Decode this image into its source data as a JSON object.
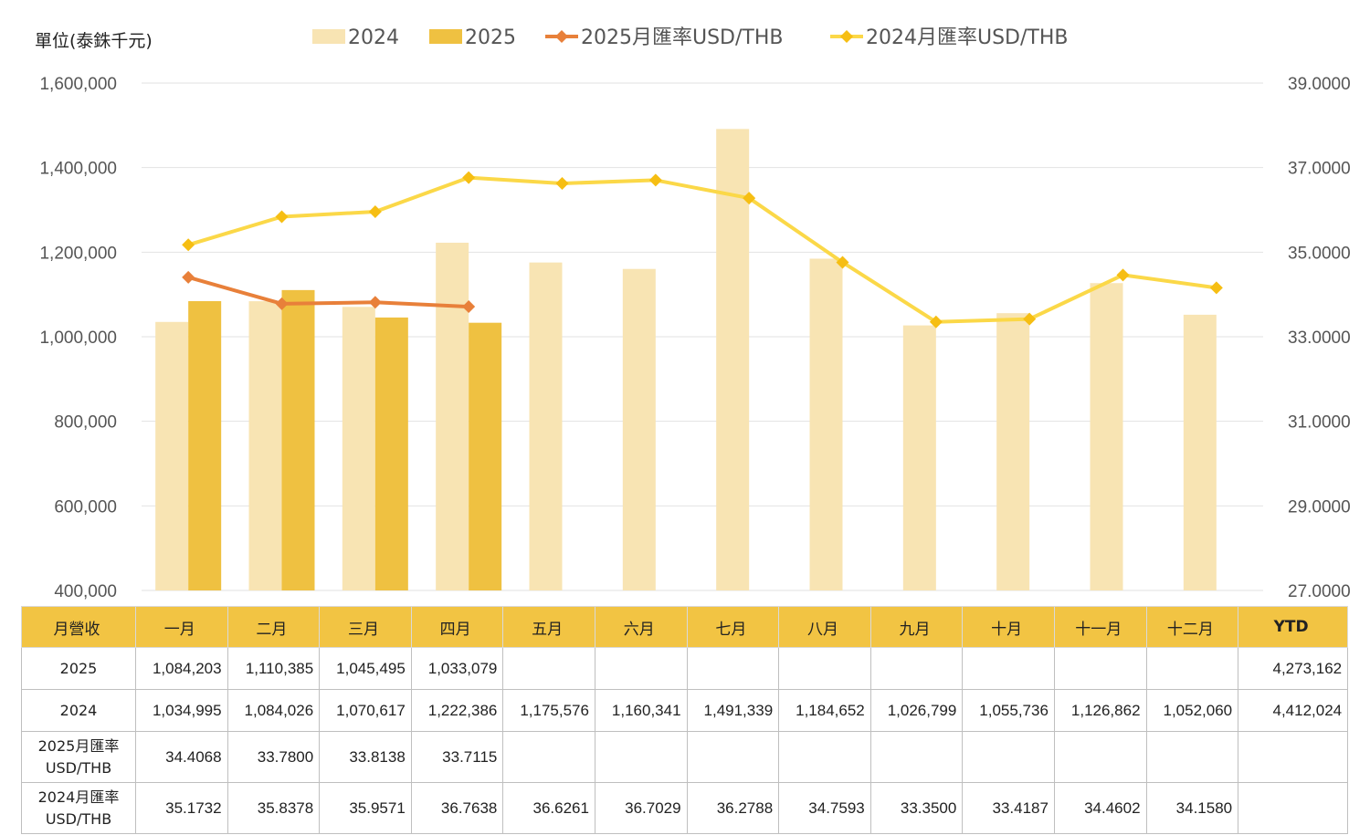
{
  "unit_label": "單位(泰銖千元)",
  "legend": {
    "s2024": "2024",
    "s2025": "2025",
    "r2025": "2025月匯率USD/THB",
    "r2024": "2024月匯率USD/THB"
  },
  "colors": {
    "bar2024": "#f8e4b3",
    "bar2025": "#efc141",
    "line2025": "#e8803a",
    "line2024": "#fbd848",
    "marker2024": "#f6be13",
    "header_bg": "#f2c443"
  },
  "chart_data": {
    "type": "bar",
    "categories": [
      "一月",
      "二月",
      "三月",
      "四月",
      "五月",
      "六月",
      "七月",
      "八月",
      "九月",
      "十月",
      "十一月",
      "十二月"
    ],
    "series": [
      {
        "name": "2024",
        "kind": "bar",
        "axis": "left",
        "values": [
          1034995,
          1084026,
          1070617,
          1222386,
          1175576,
          1160341,
          1491339,
          1184652,
          1026799,
          1055736,
          1126862,
          1052060
        ]
      },
      {
        "name": "2025",
        "kind": "bar",
        "axis": "left",
        "values": [
          1084203,
          1110385,
          1045495,
          1033079,
          null,
          null,
          null,
          null,
          null,
          null,
          null,
          null
        ]
      },
      {
        "name": "2025月匯率USD/THB",
        "kind": "line",
        "axis": "right",
        "values": [
          34.4068,
          33.78,
          33.8138,
          33.7115,
          null,
          null,
          null,
          null,
          null,
          null,
          null,
          null
        ]
      },
      {
        "name": "2024月匯率USD/THB",
        "kind": "line",
        "axis": "right",
        "values": [
          35.1732,
          35.8378,
          35.9571,
          36.7638,
          36.6261,
          36.7029,
          36.2788,
          34.7593,
          33.35,
          33.4187,
          34.4602,
          34.158
        ]
      }
    ],
    "y_left": {
      "min": 400000,
      "max": 1600000,
      "ticks": [
        "400,000",
        "600,000",
        "800,000",
        "1,000,000",
        "1,200,000",
        "1,400,000",
        "1,600,000"
      ]
    },
    "y_right": {
      "min": 27,
      "max": 39,
      "ticks": [
        "27.0000",
        "29.0000",
        "31.0000",
        "33.0000",
        "35.0000",
        "37.0000",
        "39.0000"
      ]
    },
    "grid": true,
    "legend_position": "top"
  },
  "table": {
    "header": [
      "月營收",
      "一月",
      "二月",
      "三月",
      "四月",
      "五月",
      "六月",
      "七月",
      "八月",
      "九月",
      "十月",
      "十一月",
      "十二月",
      "YTD"
    ],
    "rows": [
      {
        "label": [
          "2025"
        ],
        "cells": [
          "1,084,203",
          "1,110,385",
          "1,045,495",
          "1,033,079",
          "",
          "",
          "",
          "",
          "",
          "",
          "",
          "",
          "4,273,162"
        ]
      },
      {
        "label": [
          "2024"
        ],
        "cells": [
          "1,034,995",
          "1,084,026",
          "1,070,617",
          "1,222,386",
          "1,175,576",
          "1,160,341",
          "1,491,339",
          "1,184,652",
          "1,026,799",
          "1,055,736",
          "1,126,862",
          "1,052,060",
          "4,412,024"
        ]
      },
      {
        "label": [
          "2025月匯率",
          "USD/THB"
        ],
        "cells": [
          "34.4068",
          "33.7800",
          "33.8138",
          "33.7115",
          "",
          "",
          "",
          "",
          "",
          "",
          "",
          "",
          ""
        ]
      },
      {
        "label": [
          "2024月匯率",
          "USD/THB"
        ],
        "cells": [
          "35.1732",
          "35.8378",
          "35.9571",
          "36.7638",
          "36.6261",
          "36.7029",
          "36.2788",
          "34.7593",
          "33.3500",
          "33.4187",
          "34.4602",
          "34.1580",
          ""
        ]
      }
    ]
  }
}
